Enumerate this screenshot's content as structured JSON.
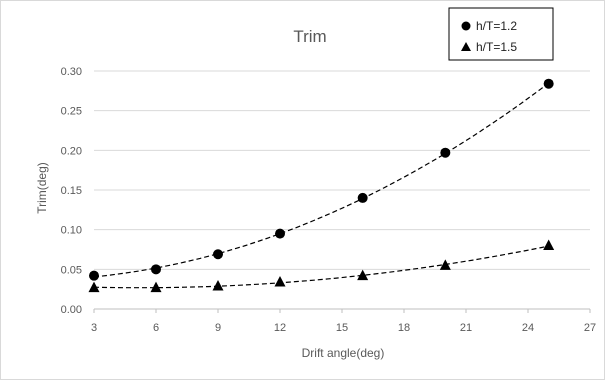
{
  "chart_data": {
    "type": "scatter",
    "title": "Trim",
    "xlabel": "Drift angle(deg)",
    "ylabel": "Trim(deg)",
    "xlim": [
      3,
      27
    ],
    "ylim": [
      0,
      0.3
    ],
    "xticks": [
      "3",
      "6",
      "9",
      "12",
      "15",
      "18",
      "21",
      "24",
      "27"
    ],
    "yticks": [
      "0.00",
      "0.05",
      "0.10",
      "0.15",
      "0.20",
      "0.25",
      "0.30"
    ],
    "grid": "horizontal",
    "legend_position": "top-right",
    "trendline": "dashed polynomial",
    "series": [
      {
        "name": "h/T=1.2",
        "marker": "circle",
        "x": [
          3,
          6,
          9,
          12,
          16,
          20,
          25
        ],
        "y": [
          0.042,
          0.05,
          0.069,
          0.095,
          0.14,
          0.197,
          0.284
        ]
      },
      {
        "name": "h/T=1.5",
        "marker": "triangle",
        "x": [
          3,
          6,
          9,
          12,
          16,
          20,
          25
        ],
        "y": [
          0.027,
          0.027,
          0.029,
          0.034,
          0.042,
          0.055,
          0.08
        ]
      }
    ],
    "colors": {
      "marker": "#000000",
      "grid": "#d9d9d9",
      "axis_text": "#595959"
    }
  }
}
